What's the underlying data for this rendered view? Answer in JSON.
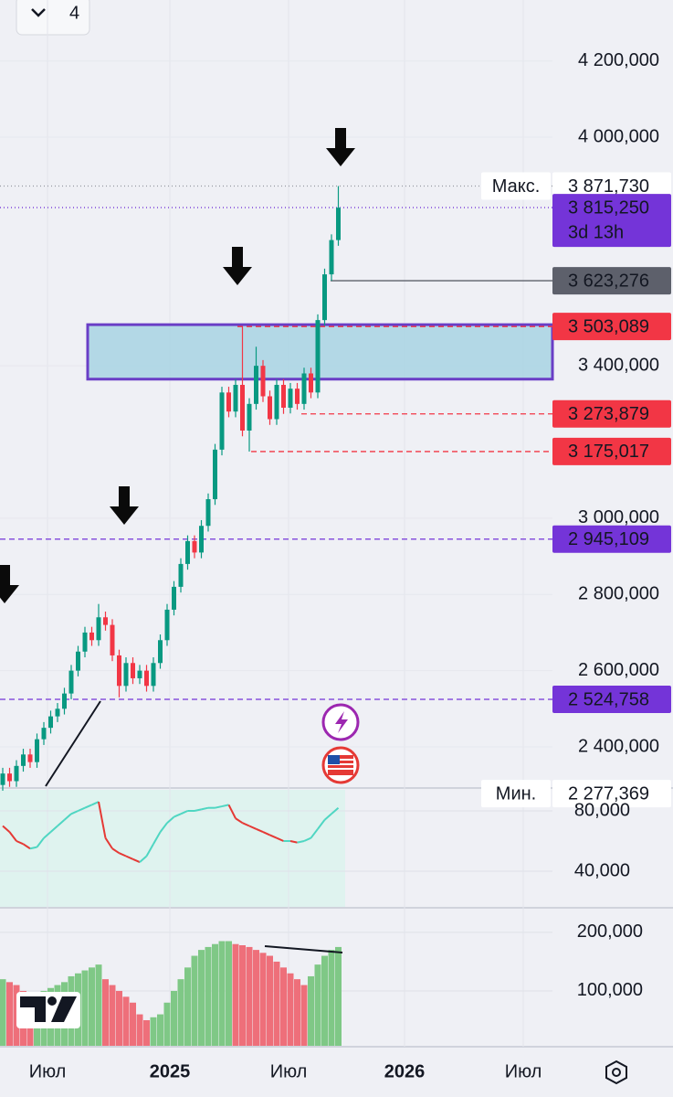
{
  "toolbar": {
    "count": "4"
  },
  "chart_data": {
    "type": "candlestick",
    "ylim": [
      2292000,
      4360000
    ],
    "yticks": [
      {
        "value": 4200000,
        "label": "4 200,000"
      },
      {
        "value": 4000000,
        "label": "4 000,000"
      },
      {
        "value": 3400000,
        "label": "3 400,000"
      },
      {
        "value": 3000000,
        "label": "3 000,000"
      },
      {
        "value": 2800000,
        "label": "2 800,000"
      },
      {
        "value": 2600000,
        "label": "2 600,000"
      },
      {
        "value": 2400000,
        "label": "2 400,000"
      }
    ],
    "up_color": "#089981",
    "down_color": "#f23645",
    "candles": [
      [
        2300000,
        2345000,
        2285000,
        2330000
      ],
      [
        2330000,
        2345000,
        2295000,
        2310000
      ],
      [
        2310000,
        2365000,
        2295000,
        2350000
      ],
      [
        2350000,
        2395000,
        2335000,
        2380000
      ],
      [
        2380000,
        2395000,
        2345000,
        2360000
      ],
      [
        2360000,
        2435000,
        2345000,
        2420000
      ],
      [
        2420000,
        2465000,
        2405000,
        2450000
      ],
      [
        2450000,
        2495000,
        2435000,
        2480000
      ],
      [
        2480000,
        2515000,
        2465000,
        2500000
      ],
      [
        2500000,
        2555000,
        2485000,
        2540000
      ],
      [
        2540000,
        2615000,
        2525000,
        2600000
      ],
      [
        2600000,
        2665000,
        2585000,
        2650000
      ],
      [
        2650000,
        2715000,
        2635000,
        2700000
      ],
      [
        2700000,
        2715000,
        2665000,
        2680000
      ],
      [
        2680000,
        2775000,
        2665000,
        2740000
      ],
      [
        2740000,
        2755000,
        2705000,
        2720000
      ],
      [
        2720000,
        2735000,
        2625000,
        2640000
      ],
      [
        2640000,
        2655000,
        2530000,
        2560000
      ],
      [
        2560000,
        2635000,
        2545000,
        2620000
      ],
      [
        2620000,
        2635000,
        2565000,
        2580000
      ],
      [
        2580000,
        2615000,
        2565000,
        2600000
      ],
      [
        2600000,
        2615000,
        2545000,
        2560000
      ],
      [
        2560000,
        2635000,
        2545000,
        2620000
      ],
      [
        2620000,
        2695000,
        2605000,
        2680000
      ],
      [
        2680000,
        2775000,
        2665000,
        2760000
      ],
      [
        2760000,
        2835000,
        2745000,
        2820000
      ],
      [
        2820000,
        2895000,
        2805000,
        2880000
      ],
      [
        2880000,
        2955000,
        2865000,
        2940000
      ],
      [
        2940000,
        2955000,
        2895000,
        2910000
      ],
      [
        2910000,
        2995000,
        2895000,
        2980000
      ],
      [
        2980000,
        3065000,
        2965000,
        3050000
      ],
      [
        3050000,
        3195000,
        3035000,
        3180000
      ],
      [
        3180000,
        3345000,
        3165000,
        3330000
      ],
      [
        3330000,
        3345000,
        3265000,
        3280000
      ],
      [
        3280000,
        3365000,
        3265000,
        3350000
      ],
      [
        3350000,
        3503089,
        3215000,
        3230000
      ],
      [
        3230000,
        3315000,
        3175017,
        3300000
      ],
      [
        3300000,
        3450000,
        3285000,
        3400000
      ],
      [
        3400000,
        3415000,
        3305000,
        3320000
      ],
      [
        3320000,
        3335000,
        3245000,
        3260000
      ],
      [
        3260000,
        3365000,
        3245000,
        3350000
      ],
      [
        3350000,
        3365000,
        3273879,
        3290000
      ],
      [
        3290000,
        3355000,
        3275000,
        3340000
      ],
      [
        3340000,
        3355000,
        3285000,
        3300000
      ],
      [
        3300000,
        3395000,
        3285000,
        3380000
      ],
      [
        3380000,
        3395000,
        3315000,
        3330000
      ],
      [
        3330000,
        3535000,
        3315000,
        3520000
      ],
      [
        3520000,
        3655000,
        3505000,
        3640000
      ],
      [
        3640000,
        3745000,
        3623276,
        3730000
      ],
      [
        3730000,
        3871730,
        3715000,
        3815000
      ]
    ],
    "zone": [
      3365000,
      3508000
    ],
    "levels": [
      {
        "value": 3871730,
        "label": "3 871,730",
        "name": "Макс.",
        "color": "#ffffff"
      },
      {
        "value": 3815250,
        "label": "3 815,250",
        "timer": "3d 13h",
        "color": "#7434d8"
      },
      {
        "value": 3623276,
        "label": "3 623,276",
        "color": "#5d606b"
      },
      {
        "value": 3503089,
        "label": "3 503,089",
        "color": "#f23645"
      },
      {
        "value": 3273879,
        "label": "3 273,879",
        "color": "#f23645"
      },
      {
        "value": 3175017,
        "label": "3 175,017",
        "color": "#f23645"
      },
      {
        "value": 2945109,
        "label": "2 945,109",
        "color": "#7434d8"
      },
      {
        "value": 2524758,
        "label": "2 524,758",
        "color": "#7434d8"
      },
      {
        "value": 2277369,
        "label": "2 277,369",
        "name": "Мин.",
        "color": "#ffffff"
      }
    ],
    "x_labels": [
      "Июл",
      "2025",
      "Июл",
      "2026",
      "Июл"
    ]
  },
  "oscillator": {
    "type": "line",
    "ylim": [
      15760,
      95150
    ],
    "yticks": [
      {
        "value": 80000,
        "label": "80,000"
      },
      {
        "value": 40000,
        "label": "40,000"
      }
    ],
    "up_color": "#4fd6c2",
    "down_color": "#e53935",
    "values": [
      70000,
      66000,
      60000,
      58000,
      55000,
      56000,
      62000,
      66000,
      70000,
      74000,
      78000,
      80000,
      82000,
      84000,
      86000,
      62000,
      55000,
      52000,
      50000,
      48000,
      46000,
      50000,
      58000,
      66000,
      72000,
      76000,
      78000,
      80000,
      80000,
      81000,
      82000,
      82000,
      83000,
      84000,
      75000,
      72000,
      70000,
      68000,
      66000,
      64000,
      62000,
      60000,
      60000,
      59000,
      60000,
      62000,
      68000,
      74000,
      78000,
      82000
    ]
  },
  "volume": {
    "type": "bar",
    "ylim": [
      4700,
      242000
    ],
    "yticks": [
      {
        "value": 200000,
        "label": "200,000"
      },
      {
        "value": 100000,
        "label": "100,000"
      }
    ],
    "up_color": "#7fc886",
    "down_color": "#ee6f7a",
    "values": [
      120000,
      115000,
      110000,
      100000,
      90000,
      95000,
      100000,
      105000,
      110000,
      115000,
      125000,
      130000,
      135000,
      140000,
      145000,
      120000,
      110000,
      100000,
      90000,
      80000,
      60000,
      50000,
      55000,
      60000,
      80000,
      100000,
      120000,
      140000,
      160000,
      170000,
      175000,
      180000,
      185000,
      185000,
      180000,
      178000,
      175000,
      170000,
      165000,
      160000,
      150000,
      140000,
      130000,
      120000,
      110000,
      125000,
      145000,
      160000,
      170000,
      175000
    ]
  }
}
